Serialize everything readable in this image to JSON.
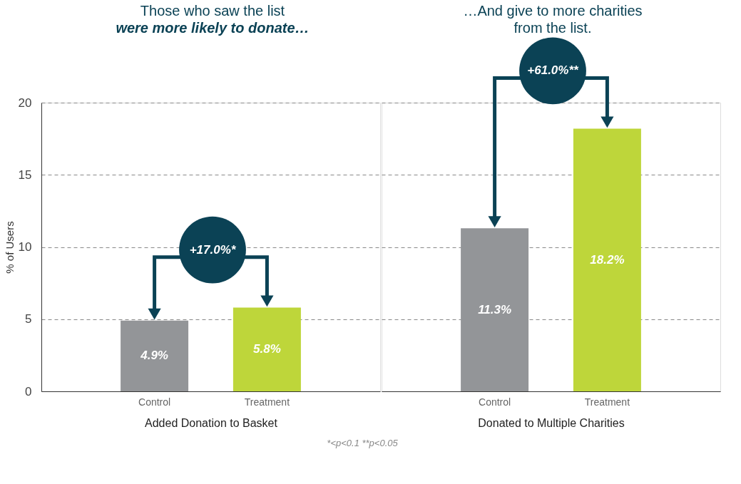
{
  "chart_data": [
    {
      "type": "bar",
      "title": "Those who saw the list",
      "subtitle": "were more likely to donate…",
      "xlabel": "Added Donation to Basket",
      "ylabel": "% of Users",
      "categories": [
        "Control",
        "Treatment"
      ],
      "values": [
        4.9,
        5.8
      ],
      "colors": [
        "#939598",
        "#bed63a"
      ],
      "value_labels": [
        "4.9%",
        "5.8%"
      ],
      "ylim": [
        0,
        20
      ],
      "yticks": [
        0,
        5,
        10,
        15,
        20
      ],
      "grid": "y",
      "annotations": [
        "+17.0%*",
        "*<p<0.1     **p<0.05"
      ]
    },
    {
      "type": "bar",
      "title": "…And give to more charities",
      "subtitle": "from the list.",
      "xlabel": "Donated to Multiple Charities",
      "categories": [
        "Control",
        "Treatment"
      ],
      "values": [
        11.3,
        18.2
      ],
      "colors": [
        "#939598",
        "#bed63a"
      ],
      "value_labels": [
        "11.3%",
        "18.2%"
      ],
      "ylim": [
        0,
        20
      ],
      "yticks": [
        0,
        5,
        10,
        15,
        20
      ],
      "grid": "y",
      "tick_labels": "x",
      "annotations": [
        "+61.0%**"
      ]
    }
  ]
}
